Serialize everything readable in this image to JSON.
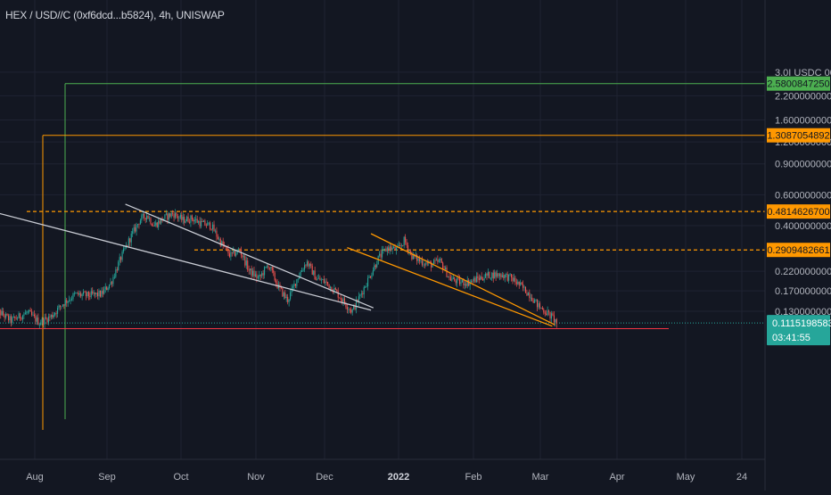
{
  "header": {
    "title": "HEX / USD//C (0xf6dcd...b5824), 4h, UNISWAP"
  },
  "colors": {
    "background": "#131722",
    "grid": "#1f2332",
    "up_candle": "#26a69a",
    "down_candle": "#ef5350",
    "green_line": "#4caf50",
    "orange_line": "#ff9800",
    "red_line": "#f23645",
    "white_line": "#c9ccd4",
    "price_tag": "#26a69a"
  },
  "chart_data": {
    "type": "candlestick",
    "scale": "log",
    "y_axis_labels": [
      "3.0I USDC 000",
      "2.2000000000",
      "1.6000000000",
      "1.2000000000",
      "0.9000000000",
      "0.6000000000",
      "0.4000000000",
      "0.2200000000",
      "0.1700000000",
      "0.1300000000"
    ],
    "x_axis_labels": [
      "Aug",
      "Sep",
      "Oct",
      "Nov",
      "Dec",
      "2022",
      "Feb",
      "Mar",
      "Apr",
      "May",
      "24"
    ],
    "price_tags": [
      {
        "name": "green-level",
        "value": "2.5800847250",
        "color": "#4caf50"
      },
      {
        "name": "orange-level-high",
        "value": "1.3087054892",
        "color": "#ff9800"
      },
      {
        "name": "orange-level-mid",
        "value": "0.4814626700",
        "color": "#ff9800"
      },
      {
        "name": "orange-level-low",
        "value": "0.2909482661",
        "color": "#ff9800"
      }
    ],
    "last_price": "0.11151985835",
    "countdown": "03:41:55",
    "levels": {
      "green": 2.58,
      "orange_high": 1.3087,
      "orange_mid": 0.4815,
      "orange_low": 0.2909,
      "red_support": 0.1035
    },
    "price_path": [
      [
        "2021-07-15",
        0.135
      ],
      [
        "2021-07-22",
        0.115
      ],
      [
        "2021-07-29",
        0.128
      ],
      [
        "2021-08-03",
        0.112
      ],
      [
        "2021-08-08",
        0.122
      ],
      [
        "2021-08-13",
        0.145
      ],
      [
        "2021-08-18",
        0.162
      ],
      [
        "2021-08-23",
        0.16
      ],
      [
        "2021-08-29",
        0.163
      ],
      [
        "2021-09-02",
        0.19
      ],
      [
        "2021-09-06",
        0.26
      ],
      [
        "2021-09-10",
        0.34
      ],
      [
        "2021-09-14",
        0.43
      ],
      [
        "2021-09-17",
        0.46
      ],
      [
        "2021-09-20",
        0.4
      ],
      [
        "2021-09-24",
        0.44
      ],
      [
        "2021-09-28",
        0.47
      ],
      [
        "2021-10-02",
        0.43
      ],
      [
        "2021-10-06",
        0.44
      ],
      [
        "2021-10-10",
        0.41
      ],
      [
        "2021-10-14",
        0.4
      ],
      [
        "2021-10-18",
        0.32
      ],
      [
        "2021-10-22",
        0.27
      ],
      [
        "2021-10-26",
        0.29
      ],
      [
        "2021-10-30",
        0.22
      ],
      [
        "2021-11-03",
        0.2
      ],
      [
        "2021-11-07",
        0.24
      ],
      [
        "2021-11-11",
        0.18
      ],
      [
        "2021-11-15",
        0.15
      ],
      [
        "2021-11-19",
        0.2
      ],
      [
        "2021-11-23",
        0.25
      ],
      [
        "2021-11-27",
        0.2
      ],
      [
        "2021-12-01",
        0.19
      ],
      [
        "2021-12-05",
        0.17
      ],
      [
        "2021-12-09",
        0.145
      ],
      [
        "2021-12-12",
        0.13
      ],
      [
        "2021-12-15",
        0.155
      ],
      [
        "2021-12-19",
        0.2
      ],
      [
        "2021-12-23",
        0.26
      ],
      [
        "2021-12-27",
        0.3
      ],
      [
        "2021-12-31",
        0.29
      ],
      [
        "2022-01-03",
        0.33
      ],
      [
        "2022-01-06",
        0.27
      ],
      [
        "2022-01-10",
        0.25
      ],
      [
        "2022-01-14",
        0.24
      ],
      [
        "2022-01-18",
        0.25
      ],
      [
        "2022-01-22",
        0.2
      ],
      [
        "2022-01-26",
        0.19
      ],
      [
        "2022-01-30",
        0.19
      ],
      [
        "2022-02-03",
        0.2
      ],
      [
        "2022-02-08",
        0.21
      ],
      [
        "2022-02-13",
        0.21
      ],
      [
        "2022-02-17",
        0.2
      ],
      [
        "2022-02-21",
        0.18
      ],
      [
        "2022-02-25",
        0.16
      ],
      [
        "2022-02-28",
        0.14
      ],
      [
        "2022-03-03",
        0.13
      ],
      [
        "2022-03-06",
        0.12
      ],
      [
        "2022-03-08",
        0.1115
      ]
    ],
    "trendlines": [
      {
        "name": "white-lower",
        "color": "#c9ccd4",
        "from": [
          "2021-07-17",
          0.47
        ],
        "to": [
          "2021-12-20",
          0.132
        ]
      },
      {
        "name": "white-upper",
        "color": "#c9ccd4",
        "from": [
          "2021-09-08",
          0.53
        ],
        "to": [
          "2021-12-21",
          0.136
        ]
      },
      {
        "name": "orange-upper",
        "color": "#ff9800",
        "from": [
          "2021-12-20",
          0.36
        ],
        "to": [
          "2022-03-07",
          0.109
        ]
      },
      {
        "name": "orange-lower",
        "color": "#ff9800",
        "from": [
          "2021-12-10",
          0.3
        ],
        "to": [
          "2022-03-06",
          0.107
        ]
      }
    ]
  }
}
